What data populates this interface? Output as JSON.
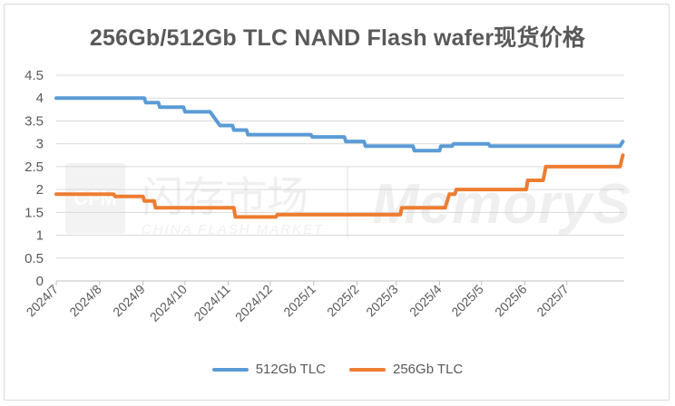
{
  "chart_data": {
    "type": "line",
    "title": "256Gb/512Gb TLC NAND Flash wafer现货价格",
    "xlabel": "",
    "ylabel": "",
    "ylim": [
      0,
      4.5
    ],
    "yticks": [
      "0",
      "0.5",
      "1",
      "1.5",
      "2",
      "2.5",
      "3",
      "3.5",
      "4",
      "4.5"
    ],
    "xticks": [
      "2024/7",
      "2024/8",
      "2024/9",
      "2024/10",
      "2024/11",
      "2024/12",
      "2025/1",
      "2025/2",
      "2025/3",
      "2025/4",
      "2025/5",
      "2025/6",
      "2025/7"
    ],
    "grid": true,
    "legend_position": "bottom",
    "series": [
      {
        "name": "512Gb TLC",
        "color": "#5b9bd5",
        "points": [
          [
            "2024-07-01",
            4.0
          ],
          [
            "2024-09-02",
            4.0
          ],
          [
            "2024-09-03",
            3.9
          ],
          [
            "2024-09-12",
            3.9
          ],
          [
            "2024-09-13",
            3.8
          ],
          [
            "2024-09-30",
            3.8
          ],
          [
            "2024-10-01",
            3.7
          ],
          [
            "2024-10-19",
            3.7
          ],
          [
            "2024-10-26",
            3.4
          ],
          [
            "2024-11-04",
            3.4
          ],
          [
            "2024-11-05",
            3.3
          ],
          [
            "2024-11-14",
            3.3
          ],
          [
            "2024-11-15",
            3.2
          ],
          [
            "2024-12-30",
            3.2
          ],
          [
            "2024-12-31",
            3.15
          ],
          [
            "2025-01-23",
            3.15
          ],
          [
            "2025-01-24",
            3.05
          ],
          [
            "2025-02-06",
            3.05
          ],
          [
            "2025-02-07",
            2.95
          ],
          [
            "2025-03-13",
            2.95
          ],
          [
            "2025-03-14",
            2.85
          ],
          [
            "2025-04-01",
            2.85
          ],
          [
            "2025-04-02",
            2.95
          ],
          [
            "2025-04-10",
            2.95
          ],
          [
            "2025-04-11",
            3.0
          ],
          [
            "2025-05-06",
            3.0
          ],
          [
            "2025-05-07",
            2.95
          ],
          [
            "2025-08-08",
            2.95
          ],
          [
            "2025-08-10",
            3.05
          ]
        ]
      },
      {
        "name": "256Gb TLC",
        "color": "#ed7d31",
        "points": [
          [
            "2024-07-01",
            1.9
          ],
          [
            "2024-08-11",
            1.9
          ],
          [
            "2024-08-12",
            1.85
          ],
          [
            "2024-09-01",
            1.85
          ],
          [
            "2024-09-02",
            1.75
          ],
          [
            "2024-09-09",
            1.75
          ],
          [
            "2024-09-10",
            1.6
          ],
          [
            "2024-11-05",
            1.6
          ],
          [
            "2024-11-06",
            1.4
          ],
          [
            "2024-12-05",
            1.4
          ],
          [
            "2024-12-06",
            1.45
          ],
          [
            "2025-03-04",
            1.45
          ],
          [
            "2025-03-05",
            1.6
          ],
          [
            "2025-04-05",
            1.6
          ],
          [
            "2025-04-08",
            1.9
          ],
          [
            "2025-04-12",
            1.9
          ],
          [
            "2025-04-13",
            2.0
          ],
          [
            "2025-06-02",
            2.0
          ],
          [
            "2025-06-03",
            2.2
          ],
          [
            "2025-06-14",
            2.2
          ],
          [
            "2025-06-16",
            2.5
          ],
          [
            "2025-08-08",
            2.5
          ],
          [
            "2025-08-10",
            2.75
          ]
        ]
      }
    ]
  },
  "watermark": {
    "left_logo_text": "CFM",
    "left_cn": "闪存市场",
    "left_en": "CHINA FLASH MARKET",
    "right": "MemoryS"
  }
}
